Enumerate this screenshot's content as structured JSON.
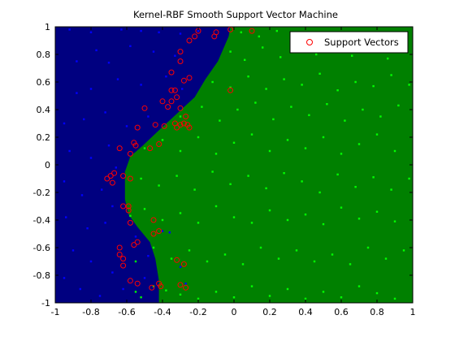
{
  "chart_data": {
    "type": "scatter",
    "title": "Kernel-RBF Smooth Support Vector Machine",
    "xlabel": "",
    "ylabel": "",
    "xlim": [
      -1,
      1
    ],
    "ylim": [
      -1,
      1
    ],
    "xticks": [
      "-1",
      "-0.8",
      "-0.6",
      "-0.4",
      "-0.2",
      "0",
      "0.2",
      "0.4",
      "0.6",
      "0.8",
      "1"
    ],
    "yticks": [
      "-1",
      "-0.8",
      "-0.6",
      "-0.4",
      "-0.2",
      "0",
      "0.2",
      "0.4",
      "0.6",
      "0.8",
      "1"
    ],
    "grid": false,
    "legend_position": "top-right",
    "regions": {
      "negative_color": "#000080",
      "positive_color": "#008000",
      "decision_boundary": [
        [
          -0.42,
          -1.0
        ],
        [
          -0.42,
          -0.84
        ],
        [
          -0.44,
          -0.68
        ],
        [
          -0.47,
          -0.56
        ],
        [
          -0.54,
          -0.45
        ],
        [
          -0.59,
          -0.36
        ],
        [
          -0.61,
          -0.25
        ],
        [
          -0.61,
          -0.05
        ],
        [
          -0.58,
          0.06
        ],
        [
          -0.51,
          0.14
        ],
        [
          -0.42,
          0.25
        ],
        [
          -0.32,
          0.37
        ],
        [
          -0.22,
          0.49
        ],
        [
          -0.16,
          0.62
        ],
        [
          -0.09,
          0.75
        ],
        [
          -0.06,
          0.84
        ],
        [
          -0.03,
          0.93
        ],
        [
          -0.02,
          1.0
        ]
      ]
    },
    "series": [
      {
        "marker": "blue-point",
        "color": "#0000ff",
        "points": [
          [
            -0.92,
            0.98
          ],
          [
            -0.8,
            0.96
          ],
          [
            -0.63,
            0.98
          ],
          [
            -0.52,
            0.97
          ],
          [
            -0.42,
            0.96
          ],
          [
            -0.3,
            0.95
          ],
          [
            -0.2,
            0.97
          ],
          [
            -0.88,
            0.75
          ],
          [
            -0.77,
            0.83
          ],
          [
            -0.7,
            0.74
          ],
          [
            -0.58,
            0.86
          ],
          [
            -0.45,
            0.82
          ],
          [
            -0.33,
            0.79
          ],
          [
            -0.88,
            0.52
          ],
          [
            -0.8,
            0.55
          ],
          [
            -0.65,
            0.62
          ],
          [
            -0.52,
            0.58
          ],
          [
            -0.38,
            0.64
          ],
          [
            -0.29,
            0.55
          ],
          [
            -0.95,
            0.3
          ],
          [
            -0.84,
            0.33
          ],
          [
            -0.72,
            0.38
          ],
          [
            -0.6,
            0.28
          ],
          [
            -0.48,
            0.35
          ],
          [
            -0.92,
            0.1
          ],
          [
            -0.8,
            0.05
          ],
          [
            -0.7,
            0.14
          ],
          [
            -0.66,
            -0.02
          ],
          [
            -0.95,
            -0.12
          ],
          [
            -0.85,
            -0.22
          ],
          [
            -0.74,
            -0.18
          ],
          [
            -0.68,
            -0.3
          ],
          [
            -0.94,
            -0.38
          ],
          [
            -0.82,
            -0.46
          ],
          [
            -0.72,
            -0.42
          ],
          [
            -0.9,
            -0.62
          ],
          [
            -0.8,
            -0.7
          ],
          [
            -0.68,
            -0.78
          ],
          [
            -0.95,
            -0.82
          ],
          [
            -0.86,
            -0.9
          ],
          [
            -0.75,
            -0.95
          ],
          [
            -0.62,
            -0.9
          ],
          [
            -0.5,
            -0.82
          ],
          [
            -0.48,
            -0.66
          ],
          [
            -0.4,
            -0.48
          ],
          [
            -0.36,
            -0.49
          ],
          [
            -0.3,
            -0.74
          ],
          [
            -0.27,
            -0.86
          ],
          [
            -0.55,
            -0.52
          ]
        ]
      },
      {
        "marker": "green-point",
        "color": "#00ff00",
        "points": [
          [
            -0.55,
            -0.92
          ],
          [
            -0.52,
            -0.96
          ],
          [
            -0.45,
            -0.88
          ],
          [
            -0.38,
            -0.91
          ],
          [
            -0.3,
            -0.94
          ],
          [
            -0.2,
            -0.97
          ],
          [
            -0.1,
            -0.92
          ],
          [
            0.0,
            -0.96
          ],
          [
            0.1,
            -0.88
          ],
          [
            0.2,
            -0.95
          ],
          [
            0.3,
            -0.9
          ],
          [
            0.4,
            -0.97
          ],
          [
            0.5,
            -0.92
          ],
          [
            0.6,
            -0.96
          ],
          [
            0.7,
            -0.88
          ],
          [
            0.8,
            -0.93
          ],
          [
            0.9,
            -0.97
          ],
          [
            -0.55,
            -0.7
          ],
          [
            -0.45,
            -0.6
          ],
          [
            -0.35,
            -0.68
          ],
          [
            -0.25,
            -0.62
          ],
          [
            -0.15,
            -0.7
          ],
          [
            -0.05,
            -0.65
          ],
          [
            0.05,
            -0.72
          ],
          [
            0.15,
            -0.6
          ],
          [
            0.25,
            -0.68
          ],
          [
            0.35,
            -0.62
          ],
          [
            0.45,
            -0.7
          ],
          [
            0.55,
            -0.65
          ],
          [
            0.65,
            -0.72
          ],
          [
            0.75,
            -0.6
          ],
          [
            0.85,
            -0.68
          ],
          [
            0.95,
            -0.62
          ],
          [
            -0.58,
            -0.37
          ],
          [
            -0.5,
            -0.32
          ],
          [
            -0.4,
            -0.4
          ],
          [
            -0.3,
            -0.35
          ],
          [
            -0.2,
            -0.42
          ],
          [
            -0.1,
            -0.3
          ],
          [
            0.0,
            -0.38
          ],
          [
            0.1,
            -0.42
          ],
          [
            0.2,
            -0.33
          ],
          [
            0.3,
            -0.4
          ],
          [
            0.4,
            -0.36
          ],
          [
            0.5,
            -0.43
          ],
          [
            0.6,
            -0.31
          ],
          [
            0.7,
            -0.39
          ],
          [
            0.8,
            -0.34
          ],
          [
            0.9,
            -0.41
          ],
          [
            -0.52,
            -0.1
          ],
          [
            -0.42,
            -0.15
          ],
          [
            -0.32,
            -0.08
          ],
          [
            -0.22,
            -0.18
          ],
          [
            -0.12,
            -0.05
          ],
          [
            -0.02,
            -0.14
          ],
          [
            0.08,
            -0.08
          ],
          [
            0.18,
            -0.17
          ],
          [
            0.28,
            -0.06
          ],
          [
            0.38,
            -0.12
          ],
          [
            0.48,
            -0.2
          ],
          [
            0.58,
            -0.07
          ],
          [
            0.68,
            -0.16
          ],
          [
            0.78,
            -0.09
          ],
          [
            0.88,
            -0.18
          ],
          [
            0.98,
            -0.1
          ],
          [
            -0.5,
            0.12
          ],
          [
            -0.4,
            0.18
          ],
          [
            -0.3,
            0.1
          ],
          [
            -0.2,
            0.2
          ],
          [
            -0.1,
            0.08
          ],
          [
            0.0,
            0.16
          ],
          [
            0.1,
            0.22
          ],
          [
            0.2,
            0.1
          ],
          [
            0.3,
            0.18
          ],
          [
            0.4,
            0.12
          ],
          [
            0.5,
            0.2
          ],
          [
            0.6,
            0.08
          ],
          [
            0.7,
            0.15
          ],
          [
            0.8,
            0.22
          ],
          [
            0.9,
            0.1
          ],
          [
            -0.3,
            0.35
          ],
          [
            -0.18,
            0.42
          ],
          [
            -0.08,
            0.32
          ],
          [
            0.02,
            0.4
          ],
          [
            0.12,
            0.45
          ],
          [
            0.22,
            0.33
          ],
          [
            0.32,
            0.42
          ],
          [
            0.42,
            0.36
          ],
          [
            0.52,
            0.44
          ],
          [
            0.62,
            0.32
          ],
          [
            0.72,
            0.4
          ],
          [
            0.82,
            0.35
          ],
          [
            0.92,
            0.43
          ],
          [
            -0.12,
            0.6
          ],
          [
            -0.02,
            0.56
          ],
          [
            0.08,
            0.64
          ],
          [
            0.18,
            0.55
          ],
          [
            0.28,
            0.62
          ],
          [
            0.38,
            0.58
          ],
          [
            0.48,
            0.66
          ],
          [
            0.58,
            0.54
          ],
          [
            0.68,
            0.6
          ],
          [
            0.78,
            0.57
          ],
          [
            0.88,
            0.65
          ],
          [
            0.98,
            0.58
          ],
          [
            -0.02,
            0.82
          ],
          [
            0.06,
            0.76
          ],
          [
            0.16,
            0.85
          ],
          [
            0.26,
            0.78
          ],
          [
            0.36,
            0.86
          ],
          [
            0.46,
            0.8
          ],
          [
            0.66,
            0.79
          ],
          [
            0.76,
            0.84
          ],
          [
            0.86,
            0.77
          ],
          [
            0.96,
            0.83
          ],
          [
            0.04,
            0.96
          ],
          [
            0.14,
            0.93
          ],
          [
            0.24,
            0.97
          ],
          [
            0.34,
            0.94
          ]
        ]
      },
      {
        "name": "Support Vectors",
        "marker": "red-circle",
        "color": "#ff0000",
        "points": [
          [
            -0.2,
            0.97
          ],
          [
            -0.22,
            0.93
          ],
          [
            -0.25,
            0.9
          ],
          [
            -0.1,
            0.96
          ],
          [
            -0.11,
            0.93
          ],
          [
            -0.02,
            0.98
          ],
          [
            0.1,
            0.97
          ],
          [
            -0.3,
            0.82
          ],
          [
            -0.3,
            0.75
          ],
          [
            -0.35,
            0.67
          ],
          [
            -0.28,
            0.61
          ],
          [
            -0.25,
            0.63
          ],
          [
            -0.02,
            0.54
          ],
          [
            -0.35,
            0.54
          ],
          [
            -0.33,
            0.54
          ],
          [
            -0.32,
            0.49
          ],
          [
            -0.35,
            0.46
          ],
          [
            -0.4,
            0.46
          ],
          [
            -0.3,
            0.41
          ],
          [
            -0.37,
            0.42
          ],
          [
            -0.5,
            0.41
          ],
          [
            -0.27,
            0.35
          ],
          [
            -0.3,
            0.29
          ],
          [
            -0.26,
            0.29
          ],
          [
            -0.44,
            0.29
          ],
          [
            -0.33,
            0.3
          ],
          [
            -0.28,
            0.3
          ],
          [
            -0.39,
            0.28
          ],
          [
            -0.25,
            0.27
          ],
          [
            -0.54,
            0.27
          ],
          [
            -0.32,
            0.27
          ],
          [
            -0.42,
            0.15
          ],
          [
            -0.56,
            0.16
          ],
          [
            -0.55,
            0.14
          ],
          [
            -0.64,
            0.12
          ],
          [
            -0.58,
            0.08
          ],
          [
            -0.47,
            0.12
          ],
          [
            -0.67,
            -0.06
          ],
          [
            -0.62,
            -0.08
          ],
          [
            -0.69,
            -0.08
          ],
          [
            -0.58,
            -0.1
          ],
          [
            -0.71,
            -0.1
          ],
          [
            -0.68,
            -0.13
          ],
          [
            -0.62,
            -0.3
          ],
          [
            -0.59,
            -0.3
          ],
          [
            -0.59,
            -0.33
          ],
          [
            -0.58,
            -0.42
          ],
          [
            -0.45,
            -0.4
          ],
          [
            -0.54,
            -0.56
          ],
          [
            -0.56,
            -0.58
          ],
          [
            -0.64,
            -0.6
          ],
          [
            -0.64,
            -0.65
          ],
          [
            -0.62,
            -0.68
          ],
          [
            -0.62,
            -0.73
          ],
          [
            -0.58,
            -0.84
          ],
          [
            -0.54,
            -0.86
          ],
          [
            -0.42,
            -0.48
          ],
          [
            -0.45,
            -0.5
          ],
          [
            -0.42,
            -0.86
          ],
          [
            -0.41,
            -0.88
          ],
          [
            -0.32,
            -0.69
          ],
          [
            -0.28,
            -0.72
          ],
          [
            -0.3,
            -0.87
          ],
          [
            -0.27,
            -0.89
          ],
          [
            -0.46,
            -0.89
          ]
        ]
      }
    ],
    "legend": {
      "label": "Support Vectors",
      "marker": "red-circle"
    }
  }
}
